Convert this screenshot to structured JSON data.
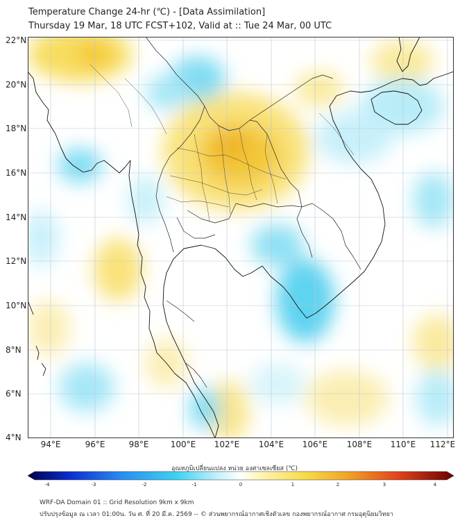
{
  "header": {
    "title": "Temperature Change 24-hr (℃) - [Data Assimilation]",
    "subtitle": "Thursday 19 Mar, 18 UTC FCST+102, Valid at :: Tue 24 Mar, 00 UTC"
  },
  "map": {
    "lat_labels": [
      "22°N",
      "20°N",
      "18°N",
      "16°N",
      "14°N",
      "12°N",
      "10°N",
      "8°N",
      "6°N",
      "4°N"
    ],
    "lon_labels": [
      "94°E",
      "96°E",
      "98°E",
      "100°E",
      "102°E",
      "104°E",
      "106°E",
      "108°E",
      "110°E",
      "112°E"
    ],
    "colors": {
      "warm": "#f6d23c",
      "cool": "#5fd3f0",
      "land_line": "#111111",
      "grid": "#bcc7d2"
    }
  },
  "colorbar": {
    "title": "อุณหภูมิเปลี่ยนแปลง หน่วย องศาเซลเซียส (℃)",
    "ticks": [
      "-4",
      "-3",
      "-2",
      "-1",
      "0",
      "1",
      "2",
      "3",
      "4"
    ]
  },
  "footer": {
    "line1": "WRF-DA Domain 01 :: Grid Resolution 9km x 9km",
    "line2": "ปรับปรุงข้อมูล ณ เวลา 01:00น. วัน ศ. ที่ 20 มี.ค. 2569 -- © ส่วนพยากรณ์อากาศเชิงตัวเลข กองพยากรณ์อากาศ กรมอุตุนิยมวิทยา"
  }
}
